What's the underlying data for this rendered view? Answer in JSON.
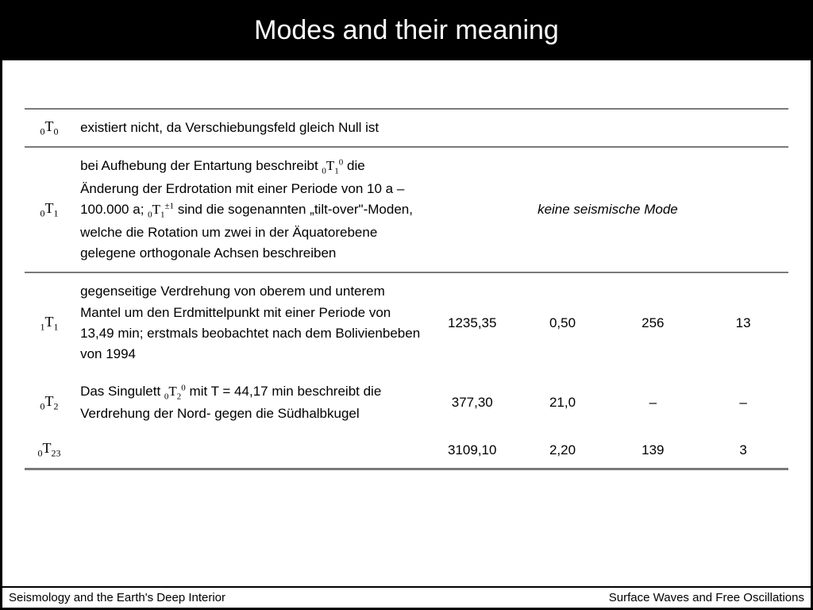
{
  "title": "Modes and their meaning",
  "footer": {
    "left": "Seismology and the Earth's Deep Interior",
    "right": "Surface Waves and Free Oscillations"
  },
  "table": {
    "note_seismic": "keine seismische Mode",
    "rows": [
      {
        "mode_pre": "0",
        "mode_sym": "T",
        "mode_post": "0",
        "desc": "existiert nicht, da Verschiebungsfeld gleich Null ist"
      },
      {
        "mode_pre": "0",
        "mode_sym": "T",
        "mode_post": "1",
        "desc_a": "bei Aufhebung der Entartung beschreibt ",
        "desc_b": " die Änderung der Erdrotation mit einer Periode von 10 a – 100.000 a; ",
        "desc_c": " sind die sogenannten „tilt-over\"-Moden, welche die Rotation um zwei in der Äquatorebene gelegene orthogonale Achsen beschreiben"
      },
      {
        "mode_pre": "1",
        "mode_sym": "T",
        "mode_post": "1",
        "desc": "gegenseitige Verdrehung von oberem und unterem Mantel um den Erdmittelpunkt mit einer Periode von 13,49 min; erstmals beobachtet nach dem Bolivienbeben von 1994",
        "c1": "1235,35",
        "c2": "0,50",
        "c3": "256",
        "c4": "13"
      },
      {
        "mode_pre": "0",
        "mode_sym": "T",
        "mode_post": "2",
        "desc_a": "Das Singulett ",
        "desc_b": " mit T = 44,17 min beschreibt die Verdrehung der Nord- gegen die Südhalbkugel",
        "c1": "377,30",
        "c2": "21,0",
        "c3": "–",
        "c4": "–"
      },
      {
        "mode_pre": "0",
        "mode_sym": "T",
        "mode_post": "23",
        "c1": "3109,10",
        "c2": "2,20",
        "c3": "139",
        "c4": "3"
      }
    ]
  }
}
